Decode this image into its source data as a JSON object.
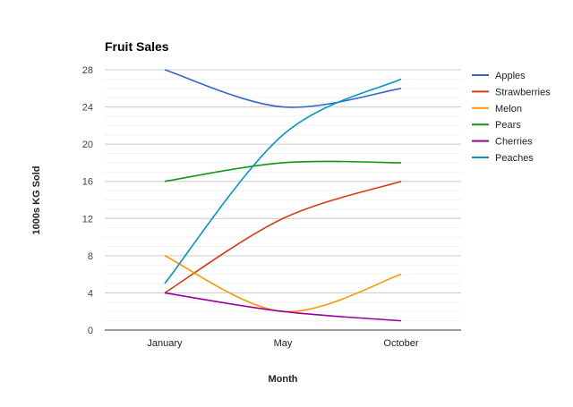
{
  "chart_data": {
    "type": "line",
    "title": "Fruit Sales",
    "xlabel": "Month",
    "ylabel": "1000s KG Sold",
    "categories": [
      "January",
      "May",
      "October"
    ],
    "ylim": [
      0,
      28
    ],
    "yticks": [
      0,
      4,
      8,
      12,
      16,
      20,
      24,
      28
    ],
    "grid": true,
    "legend_position": "right",
    "smooth": true,
    "series": [
      {
        "name": "Apples",
        "color": "#3366cc",
        "values": [
          28,
          24,
          26
        ]
      },
      {
        "name": "Strawberries",
        "color": "#dc3912",
        "values": [
          4,
          12,
          16
        ]
      },
      {
        "name": "Melon",
        "color": "#ff9900",
        "values": [
          8,
          2,
          6
        ]
      },
      {
        "name": "Pears",
        "color": "#109618",
        "values": [
          16,
          18,
          18
        ]
      },
      {
        "name": "Cherries",
        "color": "#990099",
        "values": [
          4,
          2,
          1
        ]
      },
      {
        "name": "Peaches",
        "color": "#0099c6",
        "values": [
          5,
          21,
          27
        ]
      }
    ]
  }
}
